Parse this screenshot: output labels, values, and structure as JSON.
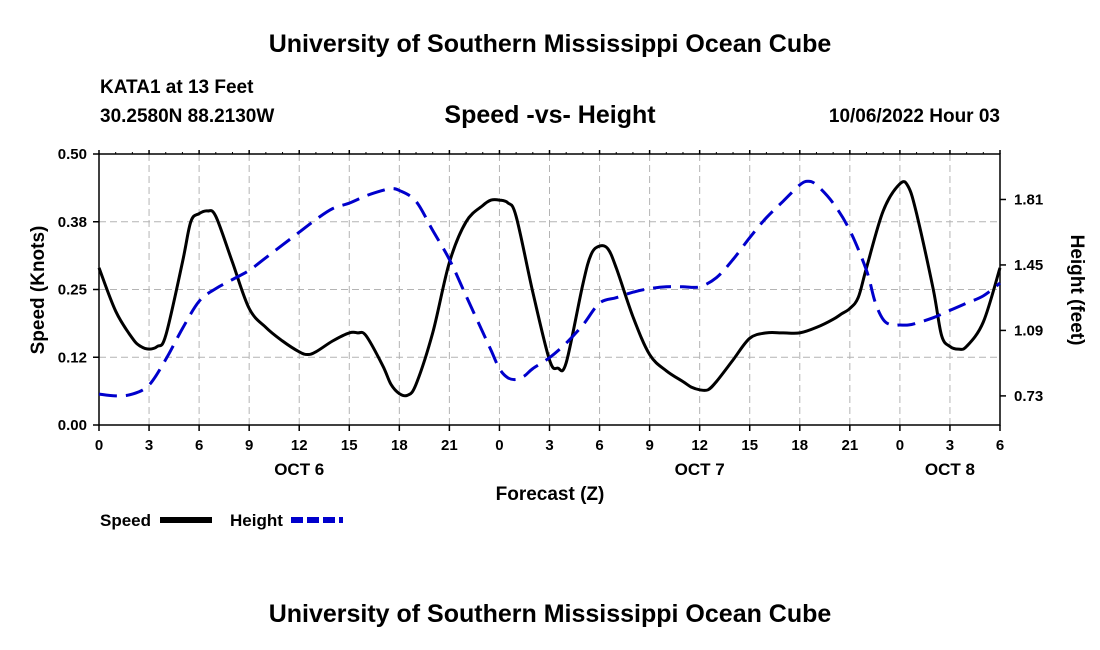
{
  "header": {
    "title": "University of Southern Mississippi Ocean Cube",
    "station": "KATA1 at 13 Feet",
    "coords": "30.2580N  88.2130W",
    "subtitle": "Speed -vs- Height",
    "datetime": "10/06/2022 Hour 03"
  },
  "footer": {
    "title": "University of Southern Mississippi Ocean Cube"
  },
  "chart_data": {
    "type": "line",
    "title": "Speed -vs- Height",
    "xlabel": "Forecast (Z)",
    "ylabel": "Speed (Knots)",
    "y2label": "Height (feet)",
    "xlim": [
      0,
      54
    ],
    "ylim": [
      0,
      0.5
    ],
    "y2lim": [
      0.57,
      2.06
    ],
    "x_ticks": [
      {
        "x": 0,
        "label": "0"
      },
      {
        "x": 3,
        "label": "3"
      },
      {
        "x": 6,
        "label": "6"
      },
      {
        "x": 9,
        "label": "9"
      },
      {
        "x": 12,
        "label": "12"
      },
      {
        "x": 15,
        "label": "15"
      },
      {
        "x": 18,
        "label": "18"
      },
      {
        "x": 21,
        "label": "21"
      },
      {
        "x": 24,
        "label": "0"
      },
      {
        "x": 27,
        "label": "3"
      },
      {
        "x": 30,
        "label": "6"
      },
      {
        "x": 33,
        "label": "9"
      },
      {
        "x": 36,
        "label": "12"
      },
      {
        "x": 39,
        "label": "15"
      },
      {
        "x": 42,
        "label": "18"
      },
      {
        "x": 45,
        "label": "21"
      },
      {
        "x": 48,
        "label": "0"
      },
      {
        "x": 51,
        "label": "3"
      },
      {
        "x": 54,
        "label": "6"
      }
    ],
    "day_labels": [
      {
        "x": 12,
        "label": "OCT 6"
      },
      {
        "x": 36,
        "label": "OCT 7"
      },
      {
        "x": 51,
        "label": "OCT 8"
      }
    ],
    "y_ticks": [
      {
        "v": 0,
        "label": "0.00"
      },
      {
        "v": 0.125,
        "label": "0.12"
      },
      {
        "v": 0.25,
        "label": "0.25"
      },
      {
        "v": 0.375,
        "label": "0.38"
      },
      {
        "v": 0.5,
        "label": "0.50"
      }
    ],
    "y2_ticks": [
      {
        "v": 0.73,
        "label": "0.73"
      },
      {
        "v": 1.09,
        "label": "1.09"
      },
      {
        "v": 1.45,
        "label": "1.45"
      },
      {
        "v": 1.81,
        "label": "1.81"
      }
    ],
    "series": [
      {
        "name": "Speed",
        "axis": "left",
        "color": "#000000",
        "dash": "solid",
        "x": [
          0,
          1,
          2,
          2.5,
          3,
          3.5,
          4,
          5,
          5.5,
          6,
          6.5,
          7,
          8,
          9,
          10,
          11,
          12,
          12.5,
          13,
          14,
          15,
          15.5,
          16,
          17,
          17.5,
          18,
          18.5,
          19,
          20,
          21,
          22,
          23,
          23.5,
          24,
          24.5,
          25,
          26,
          27,
          27.5,
          28,
          29,
          29.5,
          30,
          30.5,
          31,
          32,
          33,
          34,
          35,
          35.5,
          36,
          36.5,
          37,
          38,
          39,
          40,
          41,
          42,
          43,
          44,
          44.5,
          45,
          45.5,
          46,
          47,
          48,
          48.5,
          49,
          50,
          50.5,
          51,
          51.5,
          52,
          53,
          54
        ],
        "values": [
          0.29,
          0.21,
          0.16,
          0.145,
          0.14,
          0.145,
          0.165,
          0.3,
          0.375,
          0.39,
          0.395,
          0.385,
          0.3,
          0.215,
          0.18,
          0.155,
          0.135,
          0.13,
          0.135,
          0.155,
          0.17,
          0.17,
          0.165,
          0.11,
          0.075,
          0.058,
          0.055,
          0.075,
          0.17,
          0.3,
          0.375,
          0.405,
          0.415,
          0.415,
          0.41,
          0.385,
          0.245,
          0.12,
          0.105,
          0.115,
          0.26,
          0.315,
          0.33,
          0.325,
          0.29,
          0.2,
          0.13,
          0.1,
          0.08,
          0.07,
          0.065,
          0.065,
          0.08,
          0.12,
          0.16,
          0.17,
          0.17,
          0.17,
          0.18,
          0.195,
          0.205,
          0.215,
          0.235,
          0.29,
          0.395,
          0.445,
          0.44,
          0.39,
          0.25,
          0.165,
          0.145,
          0.14,
          0.145,
          0.19,
          0.29
        ]
      },
      {
        "name": "Height",
        "axis": "right",
        "color": "#0000cc",
        "dash": "dashed",
        "x": [
          0,
          1,
          2,
          3,
          4,
          5,
          6,
          7,
          8,
          9,
          10,
          11,
          12,
          13,
          14,
          15,
          16,
          17,
          17.5,
          18,
          19,
          20,
          21,
          22,
          23,
          23.5,
          24,
          24.5,
          25,
          25.5,
          26,
          27,
          28,
          29,
          30,
          31,
          32,
          33,
          34,
          35,
          36,
          37,
          38,
          39,
          40,
          41,
          42,
          42.5,
          43,
          44,
          45,
          46,
          46.5,
          47,
          47.5,
          48,
          48.5,
          49,
          50,
          51,
          52,
          53,
          54
        ],
        "values": [
          0.74,
          0.73,
          0.74,
          0.79,
          0.93,
          1.1,
          1.25,
          1.32,
          1.37,
          1.42,
          1.49,
          1.56,
          1.63,
          1.7,
          1.76,
          1.79,
          1.83,
          1.86,
          1.87,
          1.86,
          1.8,
          1.64,
          1.48,
          1.28,
          1.08,
          0.98,
          0.88,
          0.83,
          0.82,
          0.84,
          0.88,
          0.94,
          1.02,
          1.12,
          1.24,
          1.27,
          1.3,
          1.32,
          1.33,
          1.33,
          1.33,
          1.38,
          1.48,
          1.6,
          1.71,
          1.8,
          1.89,
          1.91,
          1.89,
          1.79,
          1.64,
          1.42,
          1.25,
          1.15,
          1.12,
          1.12,
          1.12,
          1.13,
          1.16,
          1.2,
          1.24,
          1.28,
          1.35
        ]
      }
    ],
    "legend": [
      {
        "label": "Speed",
        "color": "#000000",
        "dash": "solid"
      },
      {
        "label": "Height",
        "color": "#0000cc",
        "dash": "dashed"
      }
    ]
  }
}
